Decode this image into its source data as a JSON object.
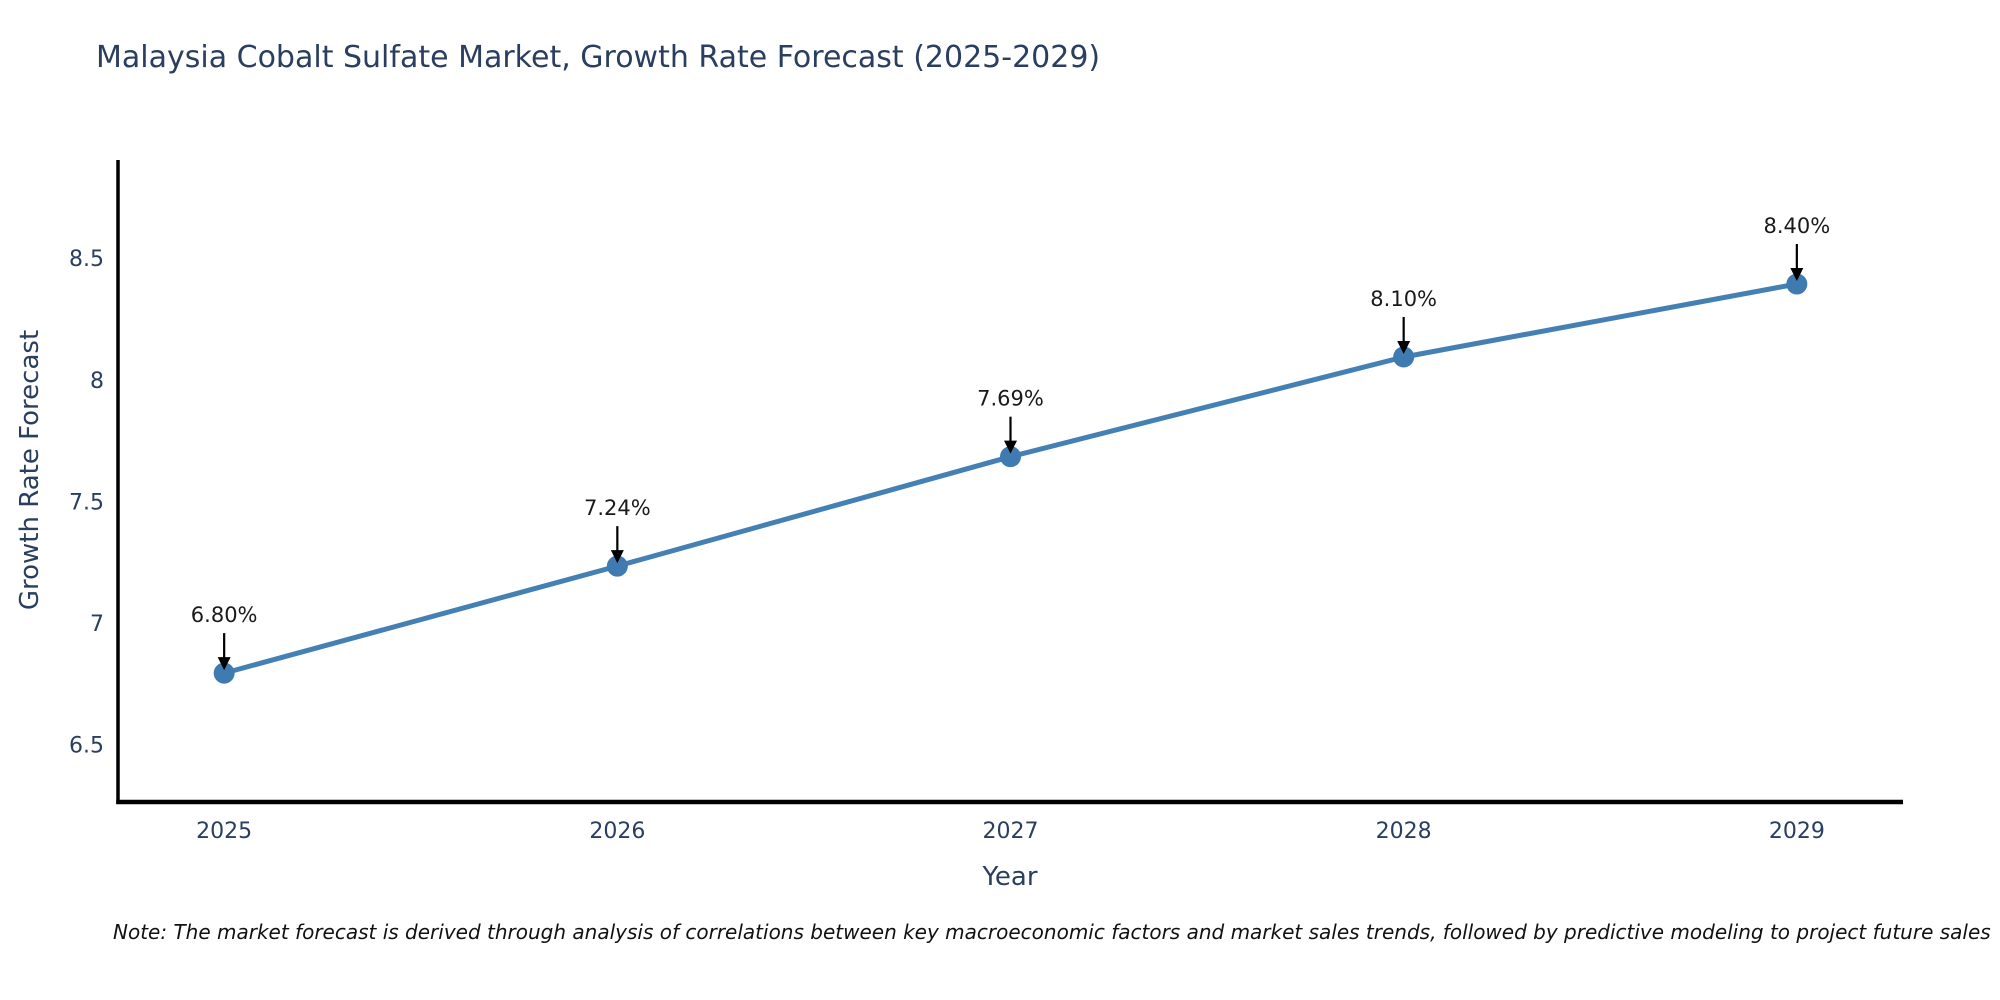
{
  "title": "Malaysia Cobalt Sulfate Market, Growth Rate Forecast (2025-2029)",
  "note": "Note: The market forecast is derived through analysis of correlations between key macroeconomic factors and market sales trends, followed by predictive modeling to project future sales",
  "chart_data": {
    "type": "line",
    "title": "Malaysia Cobalt Sulfate Market, Growth Rate Forecast (2025-2029)",
    "xlabel": "Year",
    "ylabel": "Growth Rate Forecast",
    "x": [
      2025,
      2026,
      2027,
      2028,
      2029
    ],
    "values": [
      6.8,
      7.24,
      7.69,
      8.1,
      8.4
    ],
    "point_labels": [
      "6.80%",
      "7.24%",
      "7.69%",
      "8.10%",
      "8.40%"
    ],
    "xtick_labels": [
      "2025",
      "2026",
      "2027",
      "2028",
      "2029"
    ],
    "yticks": [
      6.5,
      7,
      7.5,
      8,
      8.5
    ],
    "ytick_labels": [
      "6.5",
      "7",
      "7.5",
      "8",
      "8.5"
    ],
    "xlim": [
      2024.73,
      2029.27
    ],
    "ylim": [
      6.27,
      8.91
    ],
    "grid": false,
    "legend": "none",
    "line_color": "#4580b4",
    "marker_color": "#3f7ab0",
    "annotation_arrow_color": "#000000",
    "annotation_text_color": "#1a1a1a",
    "axis_line_color": "#000000",
    "label_color": "#2a3f5f"
  }
}
